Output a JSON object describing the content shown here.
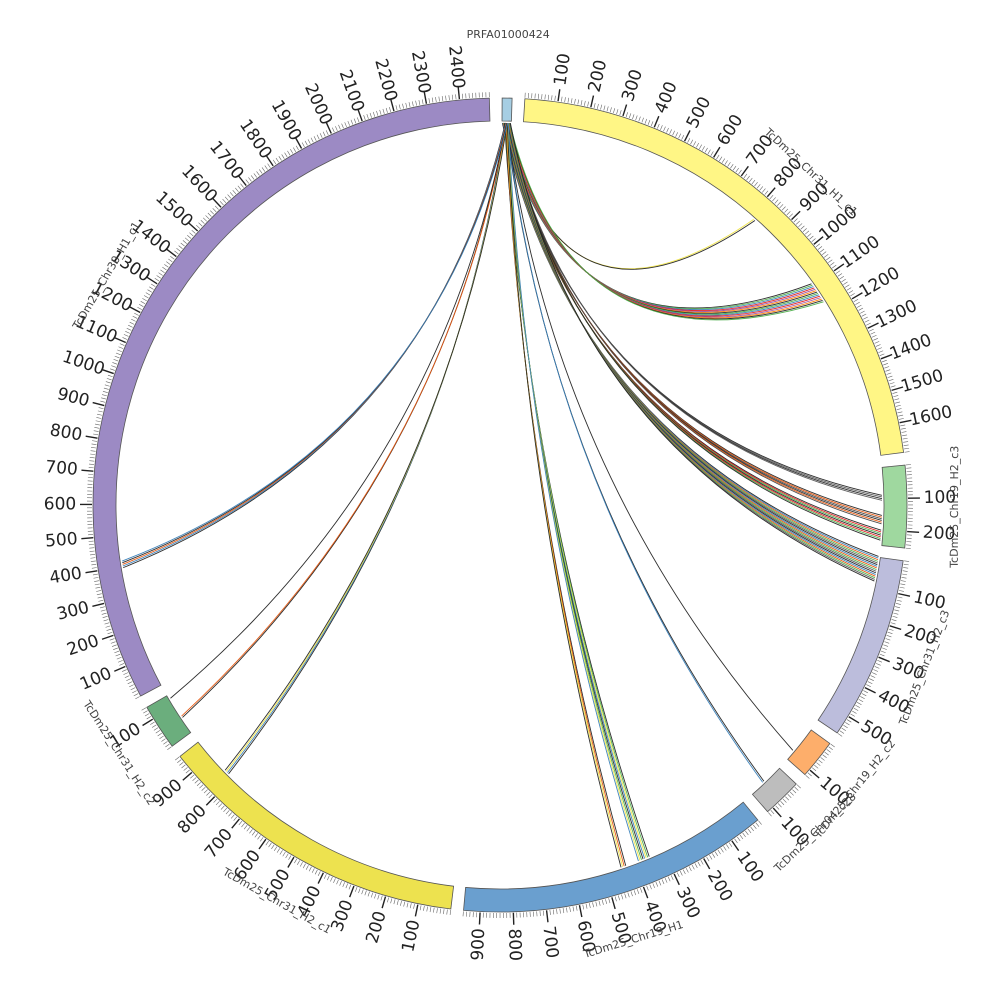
{
  "diagram": {
    "type": "circos",
    "tick_interval": 100,
    "segments": [
      {
        "name": "PRFA01000424",
        "length": 30,
        "color": "#a6cee3",
        "ticks": false
      },
      {
        "name": "TcDm25_Chr31_H1_c1",
        "length": 1690,
        "color": "#fff685"
      },
      {
        "name": "TcDm25_Chr19_H2_c3",
        "length": 250,
        "color": "#9fd89f"
      },
      {
        "name": "TcDm25_Chr31_H2_c3",
        "length": 560,
        "color": "#bcbddc"
      },
      {
        "name": "TcDm25_Chr19_H2_c2",
        "length": 120,
        "color": "#fdae6b"
      },
      {
        "name": "TcDm25_Chr04_c28",
        "length": 120,
        "color": "#bdbdbd"
      },
      {
        "name": "TcDm25_Chr19_H1",
        "length": 950,
        "color": "#6a9fcf"
      },
      {
        "name": "TcDm25_Chr31_H2_c1",
        "length": 960,
        "color": "#ede24f"
      },
      {
        "name": "TcDm25_Chr31_H2_c2",
        "length": 140,
        "color": "#6bae7d"
      },
      {
        "name": "TcDm25_Chr30_H1_c1",
        "length": 2490,
        "color": "#9c8ac4"
      }
    ],
    "links": [
      {
        "target": "TcDm25_Chr31_H1_c1",
        "pos": 820,
        "count": 2,
        "colors": [
          "#f0e442",
          "#222222"
        ]
      },
      {
        "target": "TcDm25_Chr31_H1_c1",
        "pos": 1130,
        "count": 14,
        "colors": [
          "#222222",
          "#4daf4a",
          "#377eb8",
          "#e41a1c",
          "#984ea3",
          "#ff7f00"
        ]
      },
      {
        "target": "TcDm25_Chr19_H2_c3",
        "pos": 100,
        "count": 4,
        "colors": [
          "#222222",
          "#555555"
        ]
      },
      {
        "target": "TcDm25_Chr19_H2_c3",
        "pos": 170,
        "count": 6,
        "colors": [
          "#222222",
          "#e6550d",
          "#444444"
        ]
      },
      {
        "target": "TcDm25_Chr19_H2_c3",
        "pos": 220,
        "count": 7,
        "colors": [
          "#222222",
          "#e41a1c",
          "#4daf4a"
        ]
      },
      {
        "target": "TcDm25_Chr31_H2_c3",
        "pos": 40,
        "count": 16,
        "colors": [
          "#222222",
          "#377eb8",
          "#e6550d",
          "#4daf4a",
          "#555555"
        ]
      },
      {
        "target": "TcDm25_Chr04_c28",
        "pos": 70,
        "count": 2,
        "colors": [
          "#222222",
          "#377eb8"
        ]
      },
      {
        "target": "TcDm25_Chr19_H2_c2",
        "pos": 90,
        "count": 1,
        "colors": [
          "#222222"
        ]
      },
      {
        "target": "TcDm25_Chr19_H1",
        "pos": 370,
        "count": 8,
        "colors": [
          "#222222",
          "#4daf4a",
          "#f0e442",
          "#377eb8"
        ]
      },
      {
        "target": "TcDm25_Chr19_H1",
        "pos": 440,
        "count": 4,
        "colors": [
          "#222222",
          "#e6550d",
          "#f0e442"
        ]
      },
      {
        "target": "TcDm25_Chr31_H2_c1",
        "pos": 830,
        "count": 4,
        "colors": [
          "#222222",
          "#377eb8",
          "#f0e442"
        ]
      },
      {
        "target": "TcDm25_Chr31_H2_c2",
        "pos": 60,
        "count": 2,
        "colors": [
          "#222222",
          "#e6550d"
        ]
      },
      {
        "target": "TcDm25_Chr31_H2_c2",
        "pos": 130,
        "count": 1,
        "colors": [
          "#222222"
        ]
      },
      {
        "target": "TcDm25_Chr30_H1_c1",
        "pos": 410,
        "count": 5,
        "colors": [
          "#222222",
          "#377eb8",
          "#e6550d"
        ]
      }
    ]
  }
}
